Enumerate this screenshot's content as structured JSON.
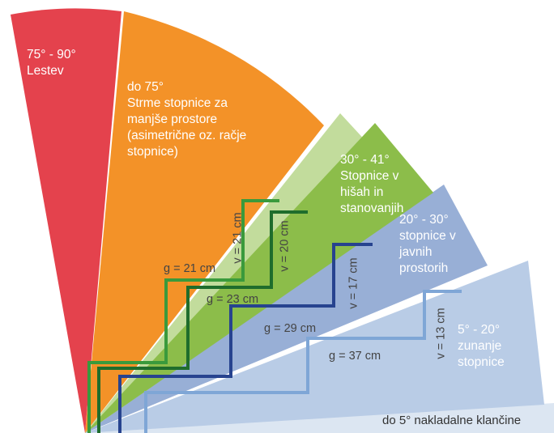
{
  "zones": [
    {
      "id": "ladder",
      "text": "75° - 90°\nLestev",
      "color": "#e4424d"
    },
    {
      "id": "steep",
      "text": "do 75°\nStrme stopnice za\nmanjše prostore\n(asimetrične oz. račje\nstopnice)",
      "color": "#f39228"
    },
    {
      "id": "house",
      "text": "30° - 41°\nStopnice v\nhišah in\nstanovanjih",
      "color": "#8cbd4a",
      "light_color": "#c2dc9c"
    },
    {
      "id": "public",
      "text": "20° - 30°\nstopnice v\njavnih\nprostorih",
      "color": "#98afd6"
    },
    {
      "id": "outdoor",
      "text": "5° - 20°\nzunanje\nstopnice",
      "color": "#b9cce6"
    },
    {
      "id": "ramp",
      "text": "do 5° nakladalne klančine",
      "color": "#dce6f2"
    }
  ],
  "dimensions": [
    {
      "id": "g21",
      "text": "g = 21 cm",
      "orientation": "horizontal"
    },
    {
      "id": "v21",
      "text": "v = 21 cm",
      "orientation": "vertical"
    },
    {
      "id": "v20",
      "text": "v = 20 cm",
      "orientation": "vertical"
    },
    {
      "id": "g23",
      "text": "g = 23 cm",
      "orientation": "horizontal"
    },
    {
      "id": "v17",
      "text": "v = 17 cm",
      "orientation": "vertical"
    },
    {
      "id": "g29",
      "text": "g = 29 cm",
      "orientation": "horizontal"
    },
    {
      "id": "v13",
      "text": "v = 13 cm",
      "orientation": "vertical"
    },
    {
      "id": "g37",
      "text": "g = 37 cm",
      "orientation": "horizontal"
    }
  ],
  "stair_colors": {
    "green_light": "#3a9a3c",
    "green_dark": "#1f6d2c",
    "blue_dark": "#27438f",
    "blue_light": "#7fa6d6"
  }
}
